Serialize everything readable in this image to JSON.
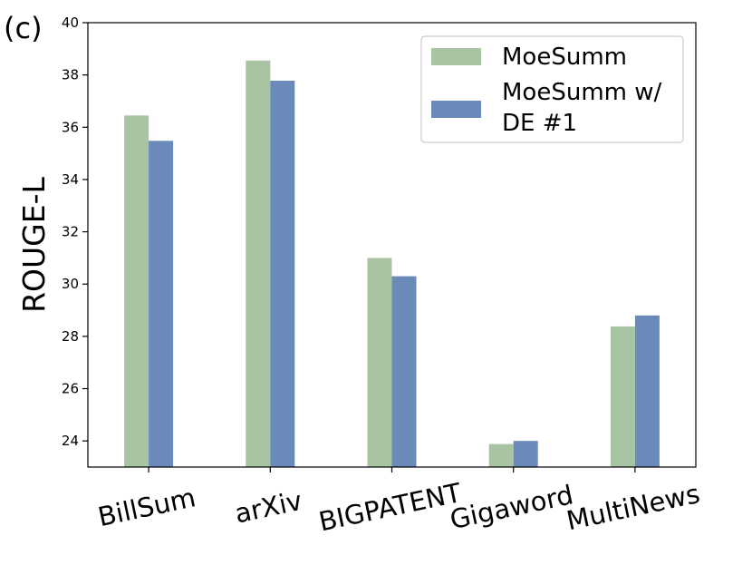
{
  "panel_label": "(c)",
  "chart_data": {
    "type": "bar",
    "title": "",
    "xlabel": "",
    "ylabel": "ROUGE-L",
    "ylim": [
      23,
      40
    ],
    "yticks": [
      24,
      26,
      28,
      30,
      32,
      34,
      36,
      38,
      40
    ],
    "categories": [
      "BillSum",
      "arXiv",
      "BIGPATENT",
      "Gigaword",
      "MultiNews"
    ],
    "series": [
      {
        "name": "MoeSumm",
        "color": "#a9c4a3",
        "values": [
          36.45,
          38.55,
          31.0,
          23.88,
          28.38
        ]
      },
      {
        "name": "MoeSumm w/ DE #1",
        "color": "#6a8ab9",
        "values": [
          35.48,
          37.78,
          30.3,
          24.0,
          28.8
        ]
      }
    ],
    "legend": {
      "position": "top-right",
      "entries": [
        {
          "lines": [
            "MoeSumm"
          ],
          "color": "#a9c4a3"
        },
        {
          "lines": [
            "MoeSumm w/",
            "DE #1"
          ],
          "color": "#6a8ab9"
        }
      ]
    },
    "grid": false
  }
}
